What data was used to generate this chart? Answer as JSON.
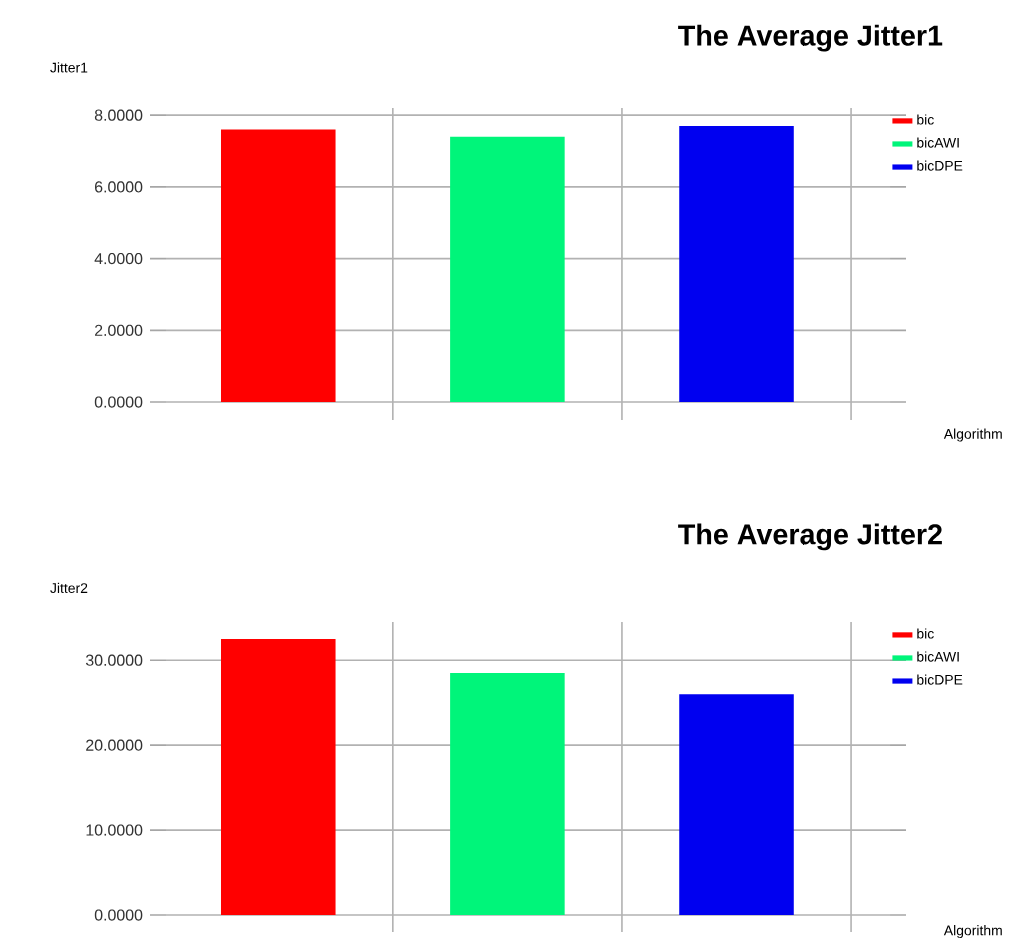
{
  "chart_data": [
    {
      "type": "bar",
      "title": "The Average Jitter1",
      "ylabel": "Jitter1",
      "xlabel": "Algorithm",
      "categories": [
        null,
        null,
        null
      ],
      "series": [
        {
          "name": "bic",
          "color": "#ff0000",
          "values": [
            7.6,
            null,
            null
          ]
        },
        {
          "name": "bicAWI",
          "color": "#00f57a",
          "values": [
            null,
            7.4,
            null
          ]
        },
        {
          "name": "bicDPE",
          "color": "#0000f0",
          "values": [
            null,
            null,
            7.7
          ]
        }
      ],
      "ylim": [
        -0.5,
        8.2
      ],
      "yticks": [
        {
          "value": 0,
          "label": "0.0000"
        },
        {
          "value": 2,
          "label": "2.0000"
        },
        {
          "value": 4,
          "label": "4.0000"
        },
        {
          "value": 6,
          "label": "6.0000"
        },
        {
          "value": 8,
          "label": "8.0000"
        }
      ],
      "grid": true,
      "legend": "top right"
    },
    {
      "type": "bar",
      "title": "The Average Jitter2",
      "ylabel": "Jitter2",
      "xlabel": "Algorithm",
      "categories": [
        null,
        null,
        null
      ],
      "series": [
        {
          "name": "bic",
          "color": "#ff0000",
          "values": [
            32.5,
            null,
            null
          ]
        },
        {
          "name": "bicAWI",
          "color": "#00f57a",
          "values": [
            null,
            28.5,
            null
          ]
        },
        {
          "name": "bicDPE",
          "color": "#0000f0",
          "values": [
            null,
            null,
            26.0
          ]
        }
      ],
      "ylim": [
        -2,
        34.5
      ],
      "yticks": [
        {
          "value": 0,
          "label": "0.0000"
        },
        {
          "value": 10,
          "label": "10.0000"
        },
        {
          "value": 20,
          "label": "20.0000"
        },
        {
          "value": 30,
          "label": "30.0000"
        }
      ],
      "grid": true,
      "legend": "top right"
    }
  ]
}
